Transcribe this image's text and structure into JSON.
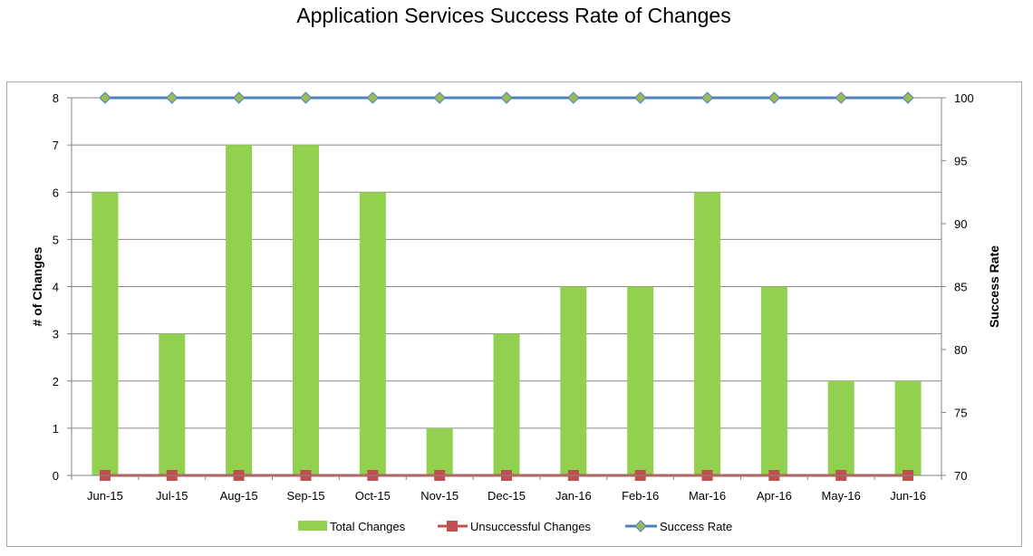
{
  "chart_data": {
    "type": "bar",
    "title": "Application Services Success Rate of Changes",
    "categories": [
      "Jun-15",
      "Jul-15",
      "Aug-15",
      "Sep-15",
      "Oct-15",
      "Nov-15",
      "Dec-15",
      "Jan-16",
      "Feb-16",
      "Mar-16",
      "Apr-16",
      "May-16",
      "Jun-16"
    ],
    "series": [
      {
        "name": "Total Changes",
        "kind": "bar",
        "axis": "left",
        "color": "#92d050",
        "values": [
          6,
          3,
          7,
          7,
          6,
          1,
          3,
          4,
          4,
          6,
          4,
          2,
          2
        ]
      },
      {
        "name": "Unsuccessful Changes",
        "kind": "line",
        "axis": "left",
        "color": "#c0504d",
        "marker": "square",
        "values": [
          0,
          0,
          0,
          0,
          0,
          0,
          0,
          0,
          0,
          0,
          0,
          0,
          0
        ]
      },
      {
        "name": "Success Rate",
        "kind": "line",
        "axis": "right",
        "color": "#4f81bd",
        "marker": "diamond",
        "marker_color": "#9bbb59",
        "values": [
          100,
          100,
          100,
          100,
          100,
          100,
          100,
          100,
          100,
          100,
          100,
          100,
          100
        ]
      }
    ],
    "ylabel": "# of Changes",
    "ylim": [
      0,
      8
    ],
    "yticks": [
      "0",
      "1",
      "2",
      "3",
      "4",
      "5",
      "6",
      "7",
      "8"
    ],
    "y2label": "Success Rate",
    "y2lim": [
      70,
      100
    ],
    "y2ticks": [
      "70",
      "75",
      "80",
      "85",
      "90",
      "95",
      "100"
    ],
    "grid": true,
    "legend_position": "bottom"
  }
}
